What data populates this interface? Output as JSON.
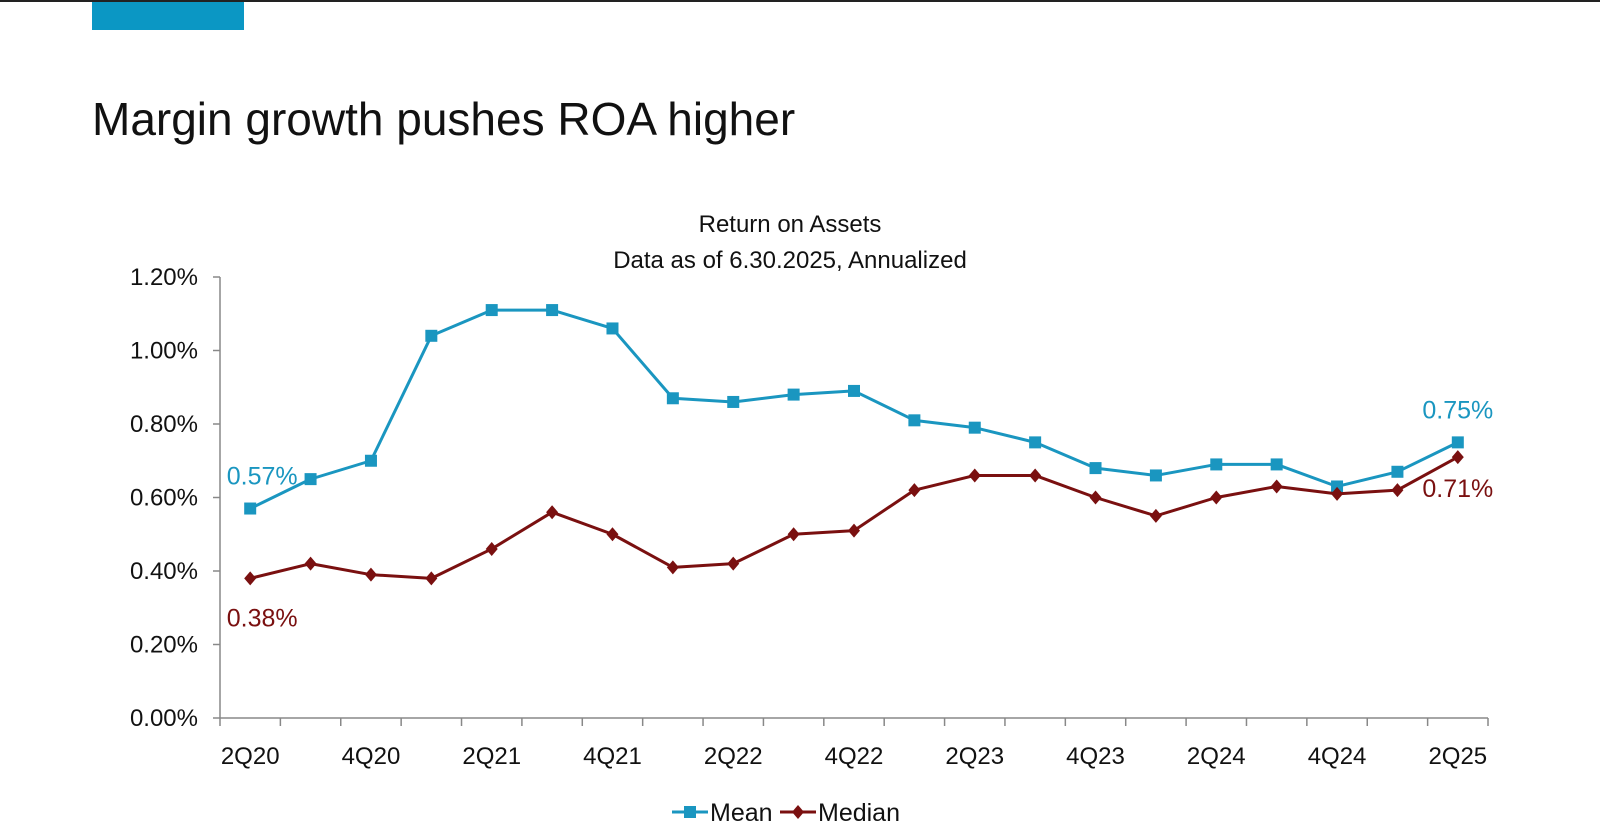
{
  "slide": {
    "title": "Margin growth pushes ROA higher",
    "accent_color": "#0b97c4"
  },
  "chart_data": {
    "type": "line",
    "title": "Return on Assets",
    "subtitle": "Data as of 6.30.2025, Annualized",
    "xlabel": "",
    "ylabel": "",
    "ylim": [
      0,
      0.012
    ],
    "yticks": [
      "0.00%",
      "0.20%",
      "0.40%",
      "0.60%",
      "0.80%",
      "1.00%",
      "1.20%"
    ],
    "categories": [
      "2Q20",
      "3Q20",
      "4Q20",
      "1Q21",
      "2Q21",
      "3Q21",
      "4Q21",
      "1Q22",
      "2Q22",
      "3Q22",
      "4Q22",
      "1Q23",
      "2Q23",
      "3Q23",
      "4Q23",
      "1Q24",
      "2Q24",
      "3Q24",
      "4Q24",
      "1Q25",
      "2Q25"
    ],
    "tick_labels": [
      "2Q20",
      "",
      "4Q20",
      "",
      "2Q21",
      "",
      "4Q21",
      "",
      "2Q22",
      "",
      "4Q22",
      "",
      "2Q23",
      "",
      "4Q23",
      "",
      "2Q24",
      "",
      "4Q24",
      "",
      "2Q25"
    ],
    "grid": false,
    "legend": "bottom",
    "series": [
      {
        "name": "Mean",
        "color": "#1a96c0",
        "marker": "square",
        "values": [
          0.0057,
          0.0065,
          0.007,
          0.0104,
          0.0111,
          0.0111,
          0.0106,
          0.0087,
          0.0086,
          0.0088,
          0.0089,
          0.0081,
          0.0079,
          0.0075,
          0.0068,
          0.0066,
          0.0069,
          0.0069,
          0.0063,
          0.0067,
          0.0075
        ],
        "labels": [
          {
            "index": 0,
            "text": "0.57%"
          },
          {
            "index": 20,
            "text": "0.75%"
          }
        ]
      },
      {
        "name": "Median",
        "color": "#7a1010",
        "marker": "diamond",
        "values": [
          0.0038,
          0.0042,
          0.0039,
          0.0038,
          0.0046,
          0.0056,
          0.005,
          0.0041,
          0.0042,
          0.005,
          0.0051,
          0.0062,
          0.0066,
          0.0066,
          0.006,
          0.0055,
          0.006,
          0.0063,
          0.0061,
          0.0062,
          0.0071
        ],
        "labels": [
          {
            "index": 0,
            "text": "0.38%"
          },
          {
            "index": 20,
            "text": "0.71%"
          }
        ]
      }
    ]
  }
}
